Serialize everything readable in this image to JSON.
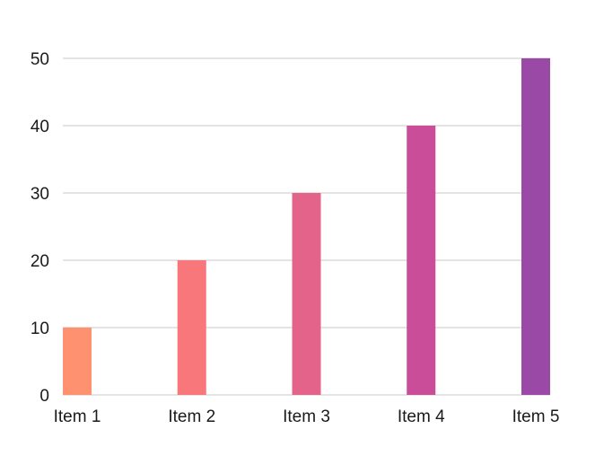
{
  "chart_data": {
    "type": "bar",
    "title": "",
    "xlabel": "",
    "ylabel": "",
    "categories": [
      "Item 1",
      "Item 2",
      "Item 3",
      "Item 4",
      "Item 5"
    ],
    "values": [
      10,
      20,
      30,
      40,
      50
    ],
    "ylim": [
      0,
      50
    ],
    "yticks": [
      "0",
      "10",
      "20",
      "30",
      "40",
      "50"
    ],
    "grid": true,
    "legend": "none",
    "bar_colors": [
      "#fe9270",
      "#f7777b",
      "#e4638a",
      "#c94d98",
      "#9a4aa6"
    ]
  }
}
